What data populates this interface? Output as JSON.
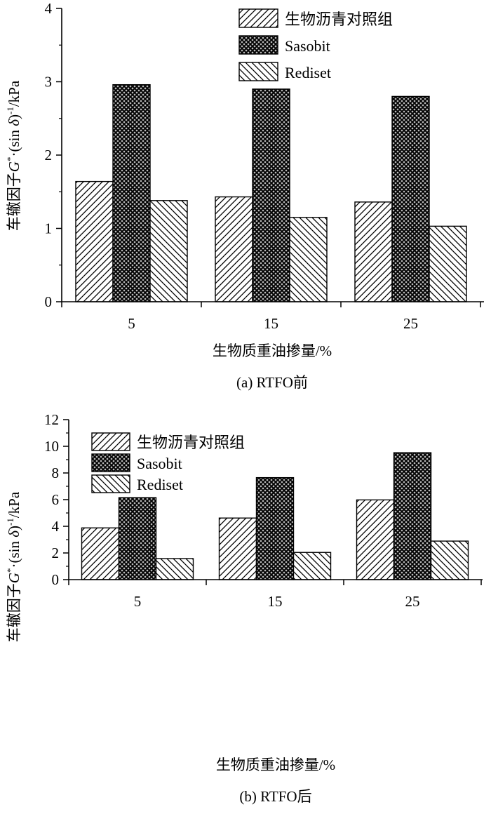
{
  "colors": {
    "ink": "#000000",
    "background": "#ffffff",
    "fill": "#ffffff"
  },
  "chart_data": [
    {
      "type": "bar",
      "caption": "(a) RTFO前",
      "xlabel": "生物质重油掺量/%",
      "ylabel": {
        "prefix": "车辙因子",
        "symbol": "G",
        "sup": "*",
        "mid": "·(sin ",
        "delta": "δ",
        "close": ")",
        "exp": "-1",
        "unit": "/kPa"
      },
      "categories": [
        "5",
        "15",
        "25"
      ],
      "ylim": [
        0,
        4
      ],
      "yticks": [
        0,
        1,
        2,
        3,
        4
      ],
      "legend_position": "top-right",
      "series": [
        {
          "name": "生物沥青对照组",
          "pattern": "diagonal-forward",
          "values": [
            1.64,
            1.43,
            1.36
          ]
        },
        {
          "name": "Sasobit",
          "pattern": "crosshatch",
          "values": [
            2.96,
            2.9,
            2.8
          ]
        },
        {
          "name": "Rediset",
          "pattern": "diagonal-backward",
          "values": [
            1.38,
            1.15,
            1.03
          ]
        }
      ]
    },
    {
      "type": "bar",
      "caption": "(b) RTFO后",
      "xlabel": "生物质重油掺量/%",
      "ylabel": {
        "prefix": "车辙因子",
        "symbol": "G",
        "sup": "*",
        "mid": "·(sin ",
        "delta": "δ",
        "close": ")",
        "exp": "-1",
        "unit": "/kPa"
      },
      "categories": [
        "5",
        "15",
        "25"
      ],
      "ylim": [
        0,
        12
      ],
      "yticks": [
        0,
        2,
        4,
        6,
        8,
        10,
        12
      ],
      "legend_position": "top-left",
      "series": [
        {
          "name": "生物沥青对照组",
          "pattern": "diagonal-forward",
          "values": [
            3.88,
            4.62,
            5.98
          ]
        },
        {
          "name": "Sasobit",
          "pattern": "crosshatch",
          "values": [
            6.15,
            7.65,
            9.52
          ]
        },
        {
          "name": "Rediset",
          "pattern": "diagonal-backward",
          "values": [
            1.58,
            2.04,
            2.89
          ]
        }
      ]
    }
  ]
}
